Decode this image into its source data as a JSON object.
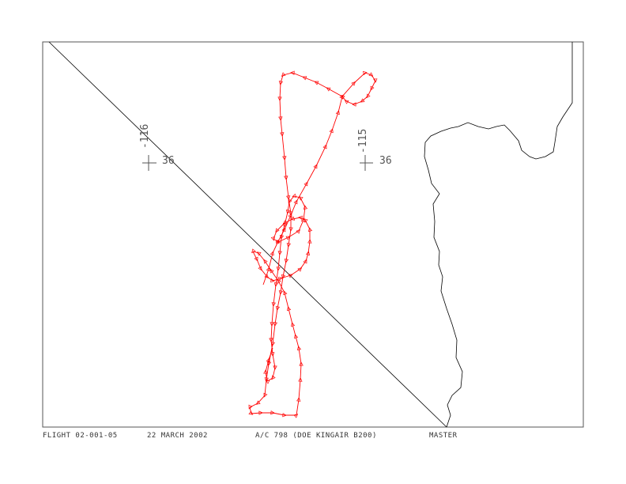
{
  "map": {
    "grid_marks": [
      {
        "lon": "-116",
        "lat": "36"
      },
      {
        "lon": "-115",
        "lat": "36"
      }
    ],
    "colors": {
      "track": "#ff0000",
      "coastline": "#000000",
      "frame": "#555555"
    },
    "track_marker": "triangle-arrow-icon"
  },
  "footer": {
    "flight": "FLIGHT 02-001-05",
    "date": "22 MARCH 2002",
    "aircraft": "A/C 798 (DOE KINGAIR B200)",
    "label": "MASTER"
  }
}
